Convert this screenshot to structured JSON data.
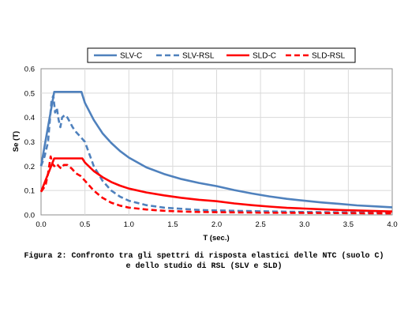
{
  "chart_data": {
    "type": "line",
    "title": "",
    "xlabel": "T (sec.)",
    "ylabel": "Se (T)",
    "xlim": [
      0,
      4.0
    ],
    "ylim": [
      0,
      0.6
    ],
    "xticks": [
      "0.0",
      "0.5",
      "1.0",
      "1.5",
      "2.0",
      "2.5",
      "3.0",
      "3.5",
      "4.0"
    ],
    "yticks": [
      "0.0",
      "0.1",
      "0.2",
      "0.3",
      "0.4",
      "0.5",
      "0.6"
    ],
    "grid": true,
    "legend_position": "top",
    "series": [
      {
        "name": "SLV-C",
        "color": "#4f81bd",
        "dash": "solid",
        "x": [
          0,
          0.15,
          0.46,
          0.5,
          0.6,
          0.7,
          0.8,
          0.9,
          1.0,
          1.2,
          1.4,
          1.6,
          1.8,
          2.0,
          2.2,
          2.4,
          2.6,
          2.8,
          3.0,
          3.2,
          3.4,
          3.6,
          3.8,
          4.0
        ],
        "y": [
          0.2,
          0.505,
          0.505,
          0.46,
          0.39,
          0.335,
          0.295,
          0.262,
          0.235,
          0.195,
          0.168,
          0.147,
          0.131,
          0.118,
          0.102,
          0.088,
          0.076,
          0.066,
          0.058,
          0.051,
          0.045,
          0.039,
          0.035,
          0.031
        ]
      },
      {
        "name": "SLV-RSL",
        "color": "#4f81bd",
        "dash": "dashed",
        "x": [
          0,
          0.04,
          0.08,
          0.12,
          0.14,
          0.16,
          0.18,
          0.2,
          0.22,
          0.24,
          0.27,
          0.3,
          0.33,
          0.36,
          0.4,
          0.45,
          0.5,
          0.55,
          0.6,
          0.7,
          0.8,
          0.9,
          1.0,
          1.2,
          1.4,
          1.6,
          1.8,
          2.0,
          2.5,
          3.0,
          3.5,
          4.0
        ],
        "y": [
          0.2,
          0.24,
          0.3,
          0.47,
          0.49,
          0.42,
          0.44,
          0.39,
          0.36,
          0.4,
          0.41,
          0.4,
          0.38,
          0.36,
          0.34,
          0.32,
          0.3,
          0.25,
          0.2,
          0.14,
          0.1,
          0.075,
          0.058,
          0.04,
          0.03,
          0.025,
          0.02,
          0.018,
          0.015,
          0.012,
          0.01,
          0.009
        ]
      },
      {
        "name": "SLD-C",
        "color": "#ff0000",
        "dash": "solid",
        "x": [
          0,
          0.15,
          0.47,
          0.5,
          0.6,
          0.7,
          0.8,
          0.9,
          1.0,
          1.2,
          1.4,
          1.6,
          1.8,
          2.0,
          2.2,
          2.4,
          2.6,
          2.8,
          3.0,
          3.2,
          3.4,
          3.6,
          3.8,
          4.0
        ],
        "y": [
          0.095,
          0.232,
          0.232,
          0.215,
          0.18,
          0.155,
          0.135,
          0.12,
          0.108,
          0.092,
          0.08,
          0.07,
          0.062,
          0.056,
          0.047,
          0.04,
          0.034,
          0.029,
          0.026,
          0.023,
          0.02,
          0.018,
          0.016,
          0.014
        ]
      },
      {
        "name": "SLD-RSL",
        "color": "#ff0000",
        "dash": "dashed",
        "x": [
          0,
          0.05,
          0.08,
          0.11,
          0.13,
          0.15,
          0.18,
          0.2,
          0.23,
          0.26,
          0.3,
          0.35,
          0.4,
          0.45,
          0.5,
          0.55,
          0.6,
          0.7,
          0.8,
          0.9,
          1.0,
          1.2,
          1.4,
          1.6,
          1.8,
          2.0,
          2.5,
          3.0,
          3.5,
          4.0
        ],
        "y": [
          0.095,
          0.12,
          0.17,
          0.24,
          0.21,
          0.2,
          0.21,
          0.2,
          0.19,
          0.205,
          0.205,
          0.19,
          0.17,
          0.16,
          0.14,
          0.12,
          0.1,
          0.07,
          0.05,
          0.038,
          0.03,
          0.022,
          0.017,
          0.014,
          0.012,
          0.011,
          0.009,
          0.008,
          0.007,
          0.006
        ]
      }
    ]
  },
  "caption_lines": [
    "Figura 2: Confronto tra gli spettri di risposta elastici delle NTC (suolo C)",
    "e dello studio di RSL (SLV e SLD)"
  ]
}
